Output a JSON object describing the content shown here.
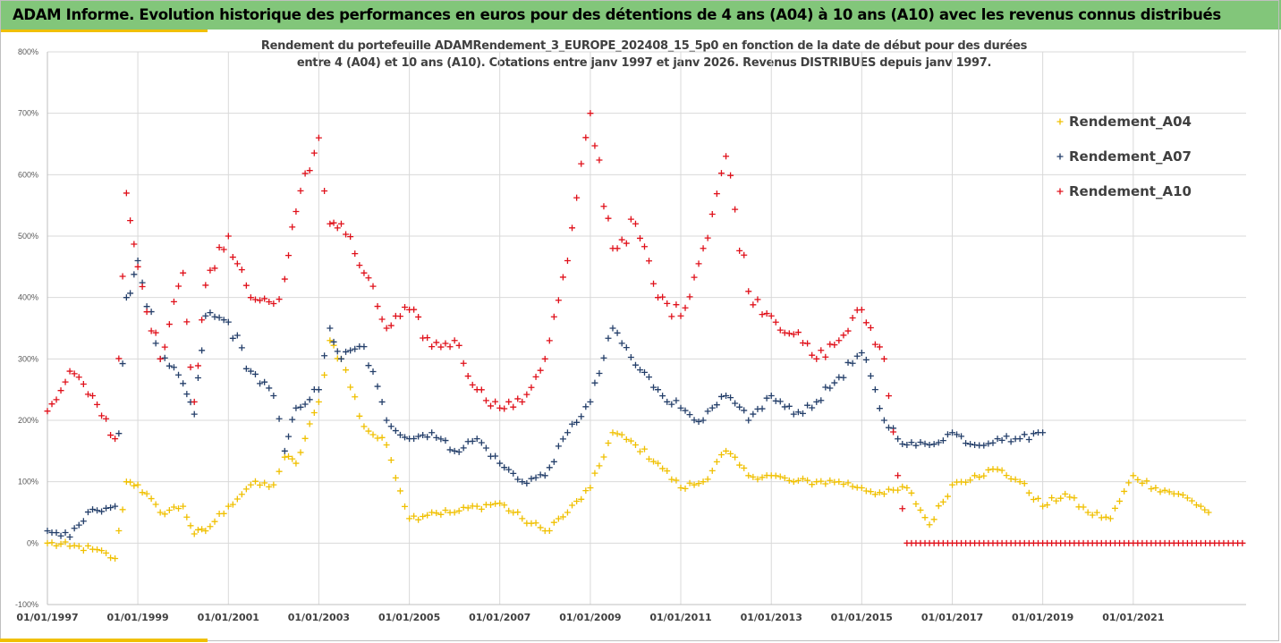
{
  "header": {
    "title": "ADAM Informe. Evolution historique des performances en euros pour des détentions de 4 ans (A04) à 10 ans (A10) avec les revenus connus distribués"
  },
  "chart_data": {
    "type": "scatter",
    "title": "",
    "subtitle_lines": [
      "Rendement du portefeuille ADAMRendement_3_EUROPE_202408_15_5p0  en fonction de la date de début pour des durées",
      "entre 4 (A04) et 10 ans (A10). Cotations entre janv 1997 et janv 2026. Revenus DISTRIBUES depuis janv 1997."
    ],
    "xlabel": "",
    "ylabel": "",
    "x_range": [
      "1997-01-01",
      "2023-07-01"
    ],
    "ylim": [
      -100,
      800
    ],
    "y_ticks": [
      "-100%",
      "0%",
      "100%",
      "200%",
      "300%",
      "400%",
      "500%",
      "600%",
      "700%",
      "800%"
    ],
    "x_ticks": [
      "01/01/1997",
      "01/01/1999",
      "01/01/2001",
      "01/01/2003",
      "01/01/2005",
      "01/01/2007",
      "01/01/2009",
      "01/01/2011",
      "01/01/2013",
      "01/01/2015",
      "01/01/2017",
      "01/01/2019",
      "01/01/2021"
    ],
    "grid": true,
    "marker": "+",
    "legend_position": "top-right",
    "series": [
      {
        "name": "Rendement_A04",
        "color": "#f0c000",
        "x": [
          "1997-01-01",
          "1997-07-01",
          "1998-01-01",
          "1998-07-01",
          "1998-10-01",
          "1999-01-01",
          "1999-07-01",
          "2000-01-01",
          "2000-04-01",
          "2000-07-01",
          "2001-01-01",
          "2001-07-01",
          "2002-01-01",
          "2002-04-01",
          "2002-07-01",
          "2003-01-01",
          "2003-04-01",
          "2003-07-01",
          "2004-01-01",
          "2004-07-01",
          "2005-01-01",
          "2005-07-01",
          "2006-01-01",
          "2006-07-01",
          "2007-01-01",
          "2007-07-01",
          "2008-01-01",
          "2008-07-01",
          "2009-01-01",
          "2009-07-01",
          "2010-01-01",
          "2010-07-01",
          "2011-01-01",
          "2011-07-01",
          "2012-01-01",
          "2012-07-01",
          "2013-01-01",
          "2013-07-01",
          "2014-01-01",
          "2014-07-01",
          "2015-01-01",
          "2015-07-01",
          "2016-01-01",
          "2016-07-01",
          "2017-01-01",
          "2017-07-01",
          "2018-01-01",
          "2018-07-01",
          "2019-01-01",
          "2019-07-01",
          "2020-01-01",
          "2020-07-01",
          "2021-01-01",
          "2021-07-01",
          "2022-01-01",
          "2022-07-01",
          "2022-09-01"
        ],
        "values": [
          0,
          -5,
          -10,
          -25,
          100,
          95,
          50,
          60,
          15,
          20,
          60,
          95,
          95,
          140,
          130,
          230,
          330,
          300,
          190,
          160,
          40,
          50,
          50,
          60,
          65,
          40,
          20,
          50,
          90,
          180,
          160,
          130,
          90,
          100,
          150,
          110,
          110,
          100,
          100,
          100,
          90,
          80,
          90,
          30,
          95,
          110,
          120,
          100,
          60,
          80,
          50,
          40,
          110,
          90,
          80,
          60,
          50
        ]
      },
      {
        "name": "Rendement_A07",
        "color": "#243f6a",
        "x": [
          "1997-01-01",
          "1997-07-01",
          "1998-01-01",
          "1998-07-01",
          "1998-10-01",
          "1999-01-01",
          "1999-07-01",
          "2000-01-01",
          "2000-04-01",
          "2000-07-01",
          "2001-01-01",
          "2001-07-01",
          "2002-01-01",
          "2002-04-01",
          "2002-07-01",
          "2003-01-01",
          "2003-04-01",
          "2003-07-01",
          "2004-01-01",
          "2004-07-01",
          "2005-01-01",
          "2005-07-01",
          "2006-01-01",
          "2006-07-01",
          "2007-01-01",
          "2007-07-01",
          "2008-01-01",
          "2008-07-01",
          "2009-01-01",
          "2009-07-01",
          "2010-01-01",
          "2010-07-01",
          "2011-01-01",
          "2011-07-01",
          "2012-01-01",
          "2012-07-01",
          "2013-01-01",
          "2013-07-01",
          "2014-01-01",
          "2014-07-01",
          "2015-01-01",
          "2015-07-01",
          "2016-01-01",
          "2016-07-01",
          "2017-01-01",
          "2017-07-01",
          "2018-01-01",
          "2018-07-01",
          "2019-01-01"
        ],
        "values": [
          20,
          10,
          55,
          60,
          400,
          460,
          300,
          260,
          210,
          370,
          360,
          280,
          240,
          150,
          220,
          250,
          350,
          300,
          320,
          200,
          170,
          180,
          150,
          170,
          130,
          100,
          110,
          180,
          230,
          350,
          290,
          250,
          220,
          200,
          240,
          200,
          240,
          210,
          230,
          270,
          310,
          200,
          160,
          160,
          180,
          160,
          170,
          170,
          180
        ]
      },
      {
        "name": "Rendement_A10",
        "color": "#e0101a",
        "x": [
          "1997-01-01",
          "1997-07-01",
          "1998-01-01",
          "1998-07-01",
          "1998-10-01",
          "1999-01-01",
          "1999-07-01",
          "2000-01-01",
          "2000-04-01",
          "2000-07-01",
          "2001-01-01",
          "2001-07-01",
          "2002-01-01",
          "2002-04-01",
          "2002-07-01",
          "2003-01-01",
          "2003-04-01",
          "2003-07-01",
          "2004-01-01",
          "2004-07-01",
          "2005-01-01",
          "2005-07-01",
          "2006-01-01",
          "2006-07-01",
          "2007-01-01",
          "2007-07-01",
          "2008-01-01",
          "2008-07-01",
          "2009-01-01",
          "2009-07-01",
          "2010-01-01",
          "2010-07-01",
          "2011-01-01",
          "2011-07-01",
          "2012-01-01",
          "2012-07-01",
          "2013-01-01",
          "2013-07-01",
          "2014-01-01",
          "2014-07-01",
          "2015-01-01",
          "2015-07-01",
          "2016-01-01",
          "2016-07-01",
          "2017-01-01",
          "2017-07-01",
          "2018-01-01",
          "2018-07-01",
          "2019-01-01",
          "2019-07-01",
          "2020-01-01",
          "2020-07-01",
          "2021-01-01",
          "2021-07-01",
          "2022-01-01",
          "2022-07-01",
          "2023-01-01",
          "2023-06-01"
        ],
        "values": [
          215,
          280,
          240,
          170,
          570,
          450,
          300,
          440,
          230,
          420,
          500,
          400,
          390,
          430,
          540,
          660,
          520,
          520,
          440,
          350,
          380,
          320,
          330,
          250,
          220,
          230,
          300,
          460,
          700,
          480,
          520,
          400,
          370,
          480,
          630,
          410,
          370,
          340,
          300,
          330,
          380,
          300,
          0,
          0,
          0,
          0,
          0,
          0,
          0,
          0,
          0,
          0,
          0,
          0,
          0,
          0,
          0,
          0
        ]
      }
    ]
  }
}
